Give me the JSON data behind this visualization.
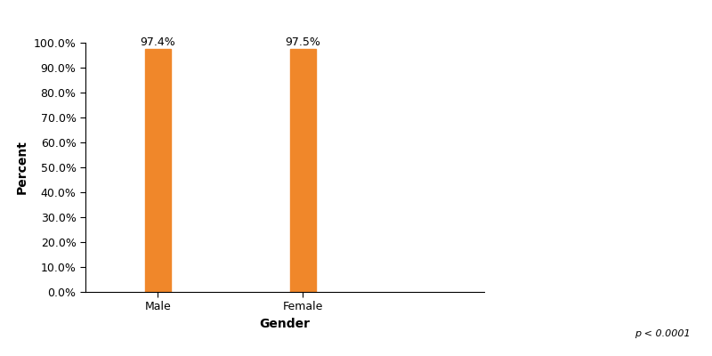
{
  "categories": [
    "Male",
    "Female"
  ],
  "values": [
    97.4,
    97.5
  ],
  "bar_color": "#F0872A",
  "bar_labels": [
    "97.4%",
    "97.5%"
  ],
  "xlabel": "Gender",
  "ylabel": "Percent",
  "ylim": [
    0,
    100
  ],
  "yticks": [
    0,
    10,
    20,
    30,
    40,
    50,
    60,
    70,
    80,
    90,
    100
  ],
  "ytick_labels": [
    "0.0%",
    "10.0%",
    "20.0%",
    "30.0%",
    "40.0%",
    "50.0%",
    "60.0%",
    "70.0%",
    "80.0%",
    "90.0%",
    "100.0%"
  ],
  "p_value_text": "p < 0.0001",
  "bar_width": 0.35,
  "background_color": "#ffffff",
  "label_fontsize": 10,
  "tick_fontsize": 9,
  "annotation_fontsize": 9,
  "p_fontsize": 8,
  "x_positions": [
    1,
    3
  ],
  "xlim": [
    0,
    5.5
  ]
}
